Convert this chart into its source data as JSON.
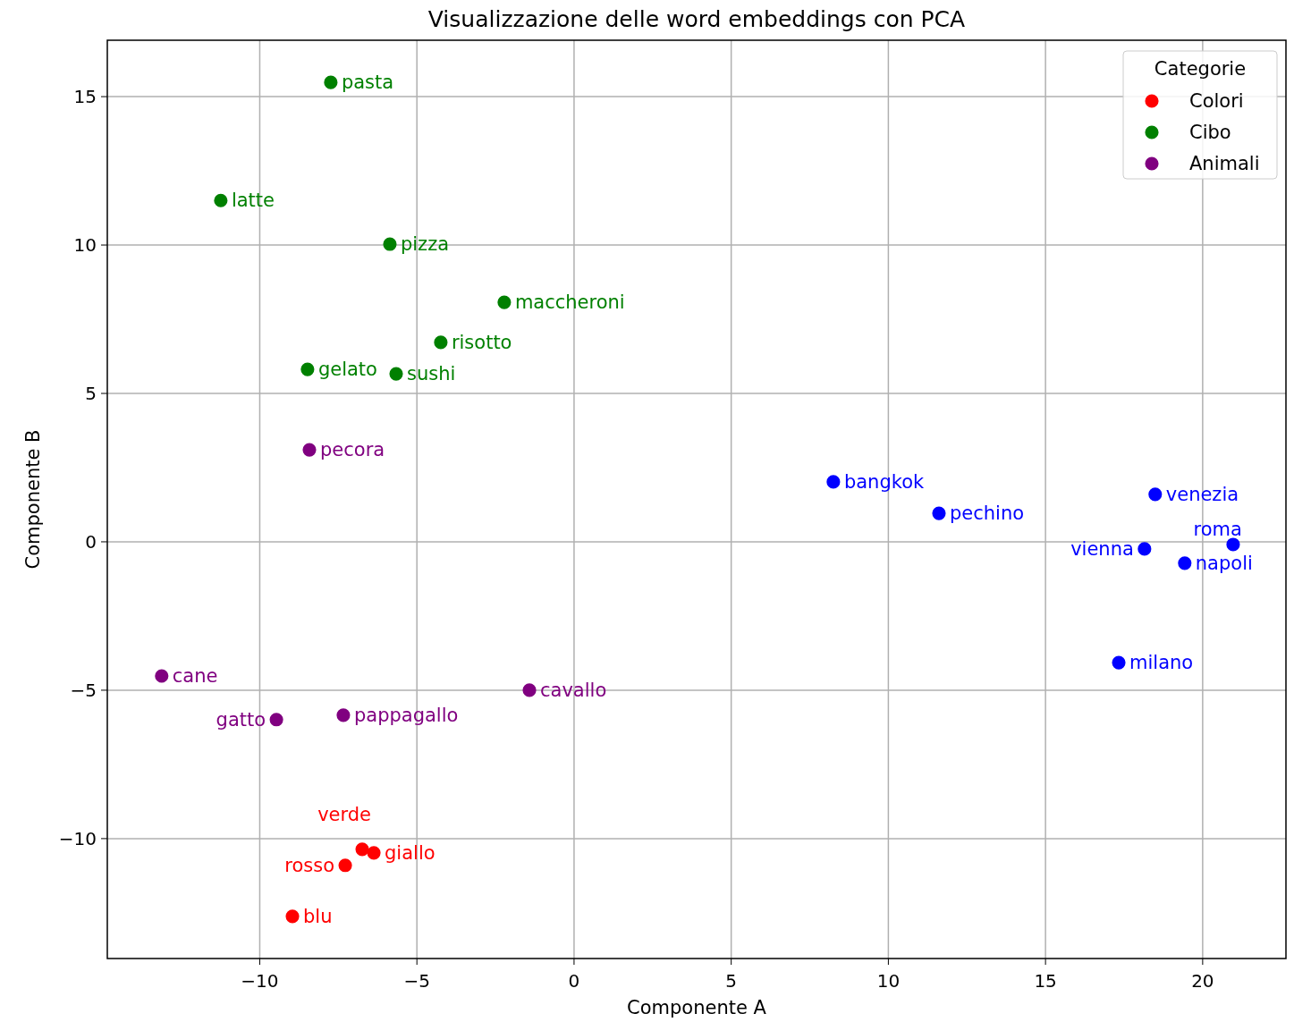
{
  "chart_data": {
    "type": "scatter",
    "title": "Visualizzazione delle word embeddings con PCA",
    "xlabel": "Componente A",
    "ylabel": "Componente B",
    "legend_title": "Categorie",
    "legend": "top right",
    "grid": true,
    "marker": "circle",
    "xlim": [
      -14.85,
      22.65
    ],
    "ylim": [
      -14.04,
      16.9
    ],
    "xticks": [
      {
        "value": -10,
        "label": "−10"
      },
      {
        "value": -5,
        "label": "−5"
      },
      0,
      5,
      10,
      15,
      20
    ],
    "yticks": [
      {
        "value": -10,
        "label": "−10"
      },
      {
        "value": -5,
        "label": "−5"
      },
      0,
      5,
      10,
      15
    ],
    "series": [
      {
        "name": "Colori",
        "color": "#ff0000",
        "x": [
          -8.96,
          -7.28,
          -6.74,
          -6.37
        ],
        "values": [
          -12.62,
          -10.9,
          -10.36,
          -10.48
        ]
      },
      {
        "name": "Cibo",
        "color": "#008000",
        "x": [
          -7.74,
          -11.24,
          -5.86,
          -2.22,
          -4.24,
          -8.48,
          -5.66
        ],
        "values": [
          15.48,
          11.5,
          10.03,
          8.07,
          6.72,
          5.81,
          5.66
        ]
      },
      {
        "name": "Animali",
        "color": "#800080",
        "x": [
          -8.42,
          -13.12,
          -9.47,
          -7.34,
          -1.42
        ],
        "values": [
          3.1,
          -4.52,
          -5.99,
          -5.84,
          -5.0
        ]
      },
      {
        "color": "#0000ff",
        "x": [
          8.25,
          11.61,
          18.49,
          18.15,
          19.43,
          20.97,
          17.33
        ],
        "values": [
          2.02,
          0.96,
          1.6,
          -0.24,
          -0.72,
          -0.09,
          -4.07
        ]
      }
    ],
    "annotations": [
      {
        "text": "blu",
        "x": -8.96,
        "y": -12.62
      },
      {
        "text": "rosso",
        "x": -7.28,
        "y": -10.9
      },
      {
        "text": "verde",
        "x": -6.74,
        "y": -10.36
      },
      {
        "text": "giallo",
        "x": -6.37,
        "y": -10.48
      },
      {
        "text": "pasta",
        "x": -7.74,
        "y": 15.48
      },
      {
        "text": "latte",
        "x": -11.24,
        "y": 11.5
      },
      {
        "text": "pizza",
        "x": -5.86,
        "y": 10.03
      },
      {
        "text": "maccheroni",
        "x": -2.22,
        "y": 8.07
      },
      {
        "text": "risotto",
        "x": -4.24,
        "y": 6.72
      },
      {
        "text": "gelato",
        "x": -8.48,
        "y": 5.81
      },
      {
        "text": "sushi",
        "x": -5.66,
        "y": 5.66
      },
      {
        "text": "pecora",
        "x": -8.42,
        "y": 3.1
      },
      {
        "text": "cane",
        "x": -13.12,
        "y": -4.52
      },
      {
        "text": "gatto",
        "x": -9.47,
        "y": -5.99
      },
      {
        "text": "pappagallo",
        "x": -7.34,
        "y": -5.84
      },
      {
        "text": "cavallo",
        "x": -1.42,
        "y": -5.0
      },
      {
        "text": "bangkok",
        "x": 8.25,
        "y": 2.02
      },
      {
        "text": "pechino",
        "x": 11.61,
        "y": 0.96
      },
      {
        "text": "venezia",
        "x": 18.49,
        "y": 1.6
      },
      {
        "text": "vienna",
        "x": 18.15,
        "y": -0.24
      },
      {
        "text": "napoli",
        "x": 19.43,
        "y": -0.72
      },
      {
        "text": "roma",
        "x": 20.97,
        "y": -0.09
      },
      {
        "text": "milano",
        "x": 17.33,
        "y": -4.07
      }
    ]
  }
}
